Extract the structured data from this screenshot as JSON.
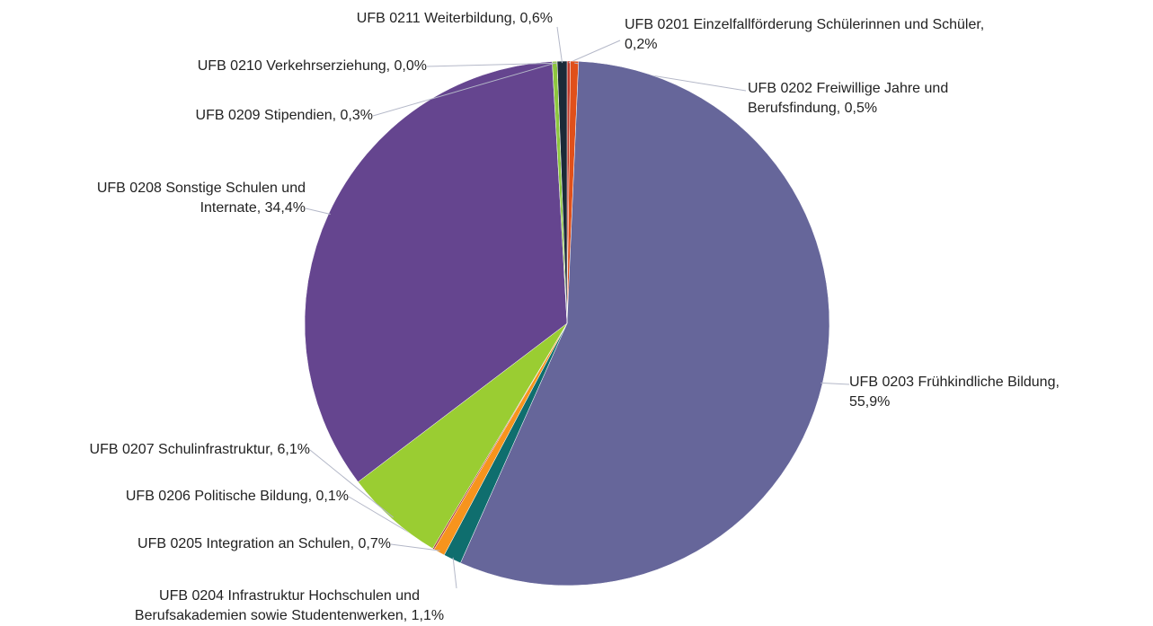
{
  "chart_data": {
    "type": "pie",
    "categories": [
      "UFB 0201 Einzelfallförderung Schülerinnen und Schüler,\n0,2%",
      "UFB 0202 Freiwillige Jahre und\nBerufsfindung, 0,5%",
      "UFB 0203 Frühkindliche Bildung,\n55,9%",
      "UFB 0204 Infrastruktur Hochschulen und\nBerufsakademien sowie Studentenwerken, 1,1%",
      "UFB 0205 Integration an Schulen, 0,7%",
      "UFB 0206 Politische Bildung, 0,1%",
      "UFB 0207 Schulinfrastruktur, 6,1%",
      "UFB 0208 Sonstige Schulen und\nInternate, 34,4%",
      "UFB 0209 Stipendien, 0,3%",
      "UFB 0210 Verkehrserziehung, 0,0%",
      "UFB 0211 Weiterbildung, 0,6%"
    ],
    "values": [
      0.2,
      0.5,
      55.9,
      1.1,
      0.7,
      0.1,
      6.1,
      34.4,
      0.3,
      0.0,
      0.6
    ],
    "colors": [
      "#c0392b",
      "#e0501a",
      "#66669a",
      "#0f6e6e",
      "#f7941d",
      "#b03a2e",
      "#9acd32",
      "#65458f",
      "#8dc63f",
      "#4a7f3a",
      "#1b2a38"
    ]
  }
}
